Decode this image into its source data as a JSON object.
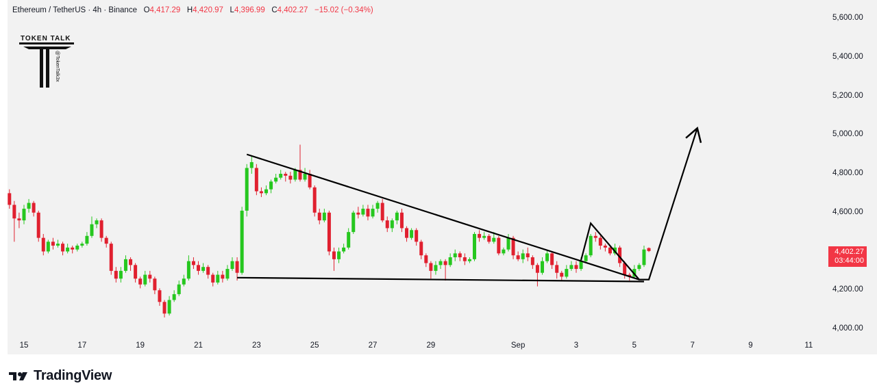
{
  "header": {
    "symbol": "Ethereum / TetherUS · 4h · Binance",
    "o_label": "O",
    "o_value": "4,417.29",
    "h_label": "H",
    "h_value": "4,420.97",
    "l_label": "L",
    "l_value": "4,396.99",
    "c_label": "C",
    "c_value": "4,402.27",
    "change": "−15.02 (−0.34%)"
  },
  "logo": {
    "text": "TOKEN TALK",
    "handle": "@TokenTalk3x"
  },
  "price_badge": {
    "price": "4,402.27",
    "countdown": "03:44:00"
  },
  "branding": {
    "name": "TradingView"
  },
  "colors": {
    "up": "#26c71f",
    "down": "#e0202f",
    "pattern_lines": "#000000",
    "badge": "#f23645"
  },
  "chart_data": {
    "type": "candlestick",
    "title": "Ethereum / TetherUS · 4h · Binance",
    "y_ticks": [
      4000,
      4200,
      4400,
      4600,
      4800,
      5000,
      5200,
      5400,
      5600
    ],
    "y_tick_labels": [
      "4,000.00",
      "4,200.00",
      "4,400.00",
      "4,600.00",
      "4,800.00",
      "5,000.00",
      "5,200.00",
      "5,400.00",
      "5,600.00"
    ],
    "ylim": [
      3990,
      5660
    ],
    "x_ticks": [
      {
        "label": "15",
        "t": 0
      },
      {
        "label": "17",
        "t": 12
      },
      {
        "label": "19",
        "t": 24
      },
      {
        "label": "21",
        "t": 36
      },
      {
        "label": "23",
        "t": 48
      },
      {
        "label": "25",
        "t": 60
      },
      {
        "label": "27",
        "t": 72
      },
      {
        "label": "29",
        "t": 84
      },
      {
        "label": "Sep",
        "t": 102
      },
      {
        "label": "3",
        "t": 114
      },
      {
        "label": "5",
        "t": 126
      },
      {
        "label": "7",
        "t": 138
      },
      {
        "label": "9",
        "t": 150
      },
      {
        "label": "11",
        "t": 162
      }
    ],
    "candles": [
      [
        -3,
        4700,
        4640,
        4720,
        4620
      ],
      [
        -2,
        4640,
        4570,
        4660,
        4450
      ],
      [
        -1,
        4570,
        4560,
        4600,
        4520
      ],
      [
        0,
        4560,
        4620,
        4640,
        4540
      ],
      [
        1,
        4620,
        4650,
        4670,
        4600
      ],
      [
        2,
        4650,
        4600,
        4660,
        4580
      ],
      [
        3,
        4600,
        4470,
        4610,
        4450
      ],
      [
        4,
        4470,
        4400,
        4490,
        4380
      ],
      [
        5,
        4400,
        4450,
        4460,
        4390
      ],
      [
        6,
        4450,
        4430,
        4470,
        4410
      ],
      [
        7,
        4430,
        4440,
        4460,
        4420
      ],
      [
        8,
        4440,
        4400,
        4450,
        4380
      ],
      [
        9,
        4400,
        4420,
        4440,
        4390
      ],
      [
        10,
        4420,
        4410,
        4430,
        4390
      ],
      [
        11,
        4410,
        4430,
        4440,
        4400
      ],
      [
        12,
        4430,
        4440,
        4450,
        4420
      ],
      [
        13,
        4440,
        4480,
        4500,
        4430
      ],
      [
        14,
        4480,
        4540,
        4580,
        4470
      ],
      [
        15,
        4540,
        4560,
        4570,
        4520
      ],
      [
        16,
        4560,
        4470,
        4570,
        4450
      ],
      [
        17,
        4470,
        4440,
        4480,
        4420
      ],
      [
        18,
        4440,
        4300,
        4450,
        4280
      ],
      [
        19,
        4300,
        4260,
        4320,
        4240
      ],
      [
        20,
        4260,
        4300,
        4320,
        4240
      ],
      [
        21,
        4300,
        4360,
        4380,
        4290
      ],
      [
        22,
        4360,
        4330,
        4370,
        4300
      ],
      [
        23,
        4330,
        4260,
        4340,
        4240
      ],
      [
        24,
        4260,
        4230,
        4270,
        4210
      ],
      [
        25,
        4230,
        4280,
        4300,
        4220
      ],
      [
        26,
        4280,
        4260,
        4300,
        4240
      ],
      [
        27,
        4260,
        4200,
        4270,
        4180
      ],
      [
        28,
        4200,
        4140,
        4210,
        4120
      ],
      [
        29,
        4140,
        4080,
        4150,
        4060
      ],
      [
        30,
        4080,
        4150,
        4170,
        4070
      ],
      [
        31,
        4150,
        4180,
        4200,
        4140
      ],
      [
        32,
        4180,
        4230,
        4250,
        4170
      ],
      [
        33,
        4230,
        4260,
        4280,
        4220
      ],
      [
        34,
        4260,
        4350,
        4380,
        4250
      ],
      [
        35,
        4350,
        4330,
        4370,
        4310
      ],
      [
        36,
        4330,
        4300,
        4350,
        4280
      ],
      [
        37,
        4300,
        4320,
        4340,
        4290
      ],
      [
        38,
        4320,
        4280,
        4330,
        4260
      ],
      [
        39,
        4280,
        4240,
        4290,
        4220
      ],
      [
        40,
        4240,
        4280,
        4300,
        4230
      ],
      [
        41,
        4280,
        4260,
        4300,
        4240
      ],
      [
        42,
        4260,
        4310,
        4330,
        4250
      ],
      [
        43,
        4310,
        4350,
        4370,
        4300
      ],
      [
        44,
        4350,
        4290,
        4370,
        4250
      ],
      [
        45,
        4290,
        4610,
        4630,
        4280
      ],
      [
        46,
        4610,
        4830,
        4850,
        4580
      ],
      [
        47,
        4830,
        4860,
        4890,
        4800
      ],
      [
        48,
        4830,
        4710,
        4850,
        4690
      ],
      [
        49,
        4710,
        4700,
        4730,
        4680
      ],
      [
        50,
        4700,
        4720,
        4740,
        4690
      ],
      [
        51,
        4720,
        4760,
        4770,
        4700
      ],
      [
        52,
        4760,
        4780,
        4800,
        4750
      ],
      [
        53,
        4780,
        4800,
        4820,
        4770
      ],
      [
        54,
        4800,
        4790,
        4810,
        4760
      ],
      [
        55,
        4790,
        4770,
        4810,
        4750
      ],
      [
        56,
        4770,
        4820,
        4830,
        4760
      ],
      [
        57,
        4820,
        4770,
        4950,
        4760
      ],
      [
        58,
        4770,
        4800,
        4830,
        4760
      ],
      [
        59,
        4800,
        4730,
        4820,
        4720
      ],
      [
        60,
        4730,
        4600,
        4740,
        4580
      ],
      [
        61,
        4600,
        4560,
        4620,
        4540
      ],
      [
        62,
        4560,
        4600,
        4620,
        4550
      ],
      [
        63,
        4600,
        4400,
        4610,
        4380
      ],
      [
        64,
        4400,
        4360,
        4420,
        4300
      ],
      [
        65,
        4360,
        4400,
        4420,
        4340
      ],
      [
        66,
        4400,
        4420,
        4440,
        4390
      ],
      [
        67,
        4420,
        4500,
        4520,
        4410
      ],
      [
        68,
        4500,
        4600,
        4610,
        4490
      ],
      [
        69,
        4600,
        4590,
        4630,
        4570
      ],
      [
        70,
        4590,
        4620,
        4640,
        4580
      ],
      [
        71,
        4620,
        4580,
        4640,
        4560
      ],
      [
        72,
        4580,
        4620,
        4640,
        4570
      ],
      [
        73,
        4620,
        4650,
        4660,
        4600
      ],
      [
        74,
        4650,
        4560,
        4670,
        4550
      ],
      [
        75,
        4560,
        4520,
        4580,
        4500
      ],
      [
        76,
        4520,
        4560,
        4570,
        4500
      ],
      [
        77,
        4560,
        4600,
        4610,
        4540
      ],
      [
        78,
        4600,
        4520,
        4620,
        4500
      ],
      [
        79,
        4520,
        4470,
        4530,
        4450
      ],
      [
        80,
        4470,
        4510,
        4520,
        4460
      ],
      [
        81,
        4510,
        4450,
        4520,
        4430
      ],
      [
        82,
        4450,
        4380,
        4460,
        4360
      ],
      [
        83,
        4380,
        4340,
        4390,
        4320
      ],
      [
        84,
        4340,
        4300,
        4350,
        4260
      ],
      [
        85,
        4300,
        4330,
        4350,
        4280
      ],
      [
        86,
        4330,
        4350,
        4360,
        4310
      ],
      [
        87,
        4350,
        4330,
        4360,
        4250
      ],
      [
        88,
        4330,
        4370,
        4390,
        4320
      ],
      [
        89,
        4370,
        4390,
        4410,
        4350
      ],
      [
        90,
        4390,
        4370,
        4400,
        4350
      ],
      [
        91,
        4370,
        4350,
        4390,
        4330
      ],
      [
        92,
        4350,
        4360,
        4370,
        4340
      ],
      [
        93,
        4360,
        4490,
        4500,
        4350
      ],
      [
        94,
        4490,
        4470,
        4510,
        4450
      ],
      [
        95,
        4470,
        4480,
        4500,
        4460
      ],
      [
        96,
        4480,
        4450,
        4490,
        4440
      ],
      [
        97,
        4450,
        4470,
        4500,
        4440
      ],
      [
        98,
        4470,
        4390,
        4480,
        4380
      ],
      [
        99,
        4390,
        4410,
        4420,
        4380
      ],
      [
        100,
        4410,
        4470,
        4490,
        4400
      ],
      [
        101,
        4470,
        4380,
        4480,
        4360
      ],
      [
        102,
        4380,
        4360,
        4400,
        4350
      ],
      [
        103,
        4360,
        4390,
        4410,
        4340
      ],
      [
        104,
        4390,
        4370,
        4420,
        4350
      ],
      [
        105,
        4370,
        4330,
        4380,
        4310
      ],
      [
        106,
        4330,
        4290,
        4340,
        4220
      ],
      [
        107,
        4290,
        4350,
        4370,
        4280
      ],
      [
        108,
        4350,
        4390,
        4410,
        4340
      ],
      [
        109,
        4390,
        4330,
        4400,
        4310
      ],
      [
        110,
        4330,
        4290,
        4350,
        4260
      ],
      [
        111,
        4290,
        4270,
        4300,
        4250
      ],
      [
        112,
        4270,
        4310,
        4330,
        4260
      ],
      [
        113,
        4310,
        4330,
        4350,
        4300
      ],
      [
        114,
        4330,
        4310,
        4350,
        4290
      ],
      [
        115,
        4310,
        4350,
        4370,
        4300
      ],
      [
        116,
        4350,
        4380,
        4390,
        4340
      ],
      [
        117,
        4380,
        4480,
        4490,
        4370
      ],
      [
        118,
        4480,
        4470,
        4500,
        4450
      ],
      [
        119,
        4470,
        4430,
        4480,
        4410
      ],
      [
        120,
        4430,
        4420,
        4440,
        4400
      ],
      [
        121,
        4420,
        4390,
        4430,
        4380
      ],
      [
        122,
        4390,
        4420,
        4440,
        4380
      ],
      [
        123,
        4420,
        4340,
        4430,
        4320
      ],
      [
        124,
        4340,
        4280,
        4350,
        4260
      ],
      [
        125,
        4280,
        4270,
        4290,
        4250
      ],
      [
        126,
        4270,
        4310,
        4330,
        4260
      ],
      [
        127,
        4310,
        4330,
        4340,
        4300
      ],
      [
        128,
        4330,
        4410,
        4430,
        4320
      ],
      [
        129,
        4417.29,
        4402.27,
        4420.97,
        4396.99
      ]
    ],
    "annotations": {
      "upper_trendline": [
        [
          46,
          4900
        ],
        [
          127,
          4255
        ]
      ],
      "lower_support": [
        [
          44,
          4265
        ],
        [
          128,
          4245
        ]
      ],
      "zigzag_arrow": [
        [
          115,
          4355
        ],
        [
          117,
          4545
        ],
        [
          127,
          4255
        ],
        [
          129,
          4255
        ],
        [
          139,
          5035
        ]
      ]
    }
  }
}
